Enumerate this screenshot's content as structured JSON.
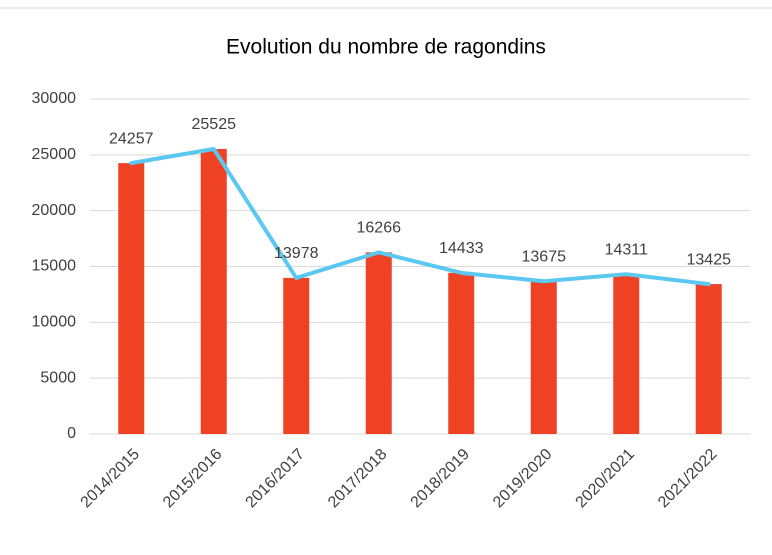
{
  "chart_data": {
    "type": "combo",
    "title": "Evolution du nombre de ragondins",
    "categories": [
      "2014/2015",
      "2015/2016",
      "2016/2017",
      "2017/2018",
      "2018/2019",
      "2019/2020",
      "2020/2021",
      "2021/2022"
    ],
    "values": [
      24257,
      25525,
      13978,
      16266,
      14433,
      13675,
      14311,
      13425
    ],
    "bar_color": "#ef4123",
    "line_color": "#5ac8f0",
    "ylim": [
      0,
      30000
    ],
    "yticks": [
      0,
      5000,
      10000,
      15000,
      20000,
      25000,
      30000
    ],
    "grid": true
  }
}
